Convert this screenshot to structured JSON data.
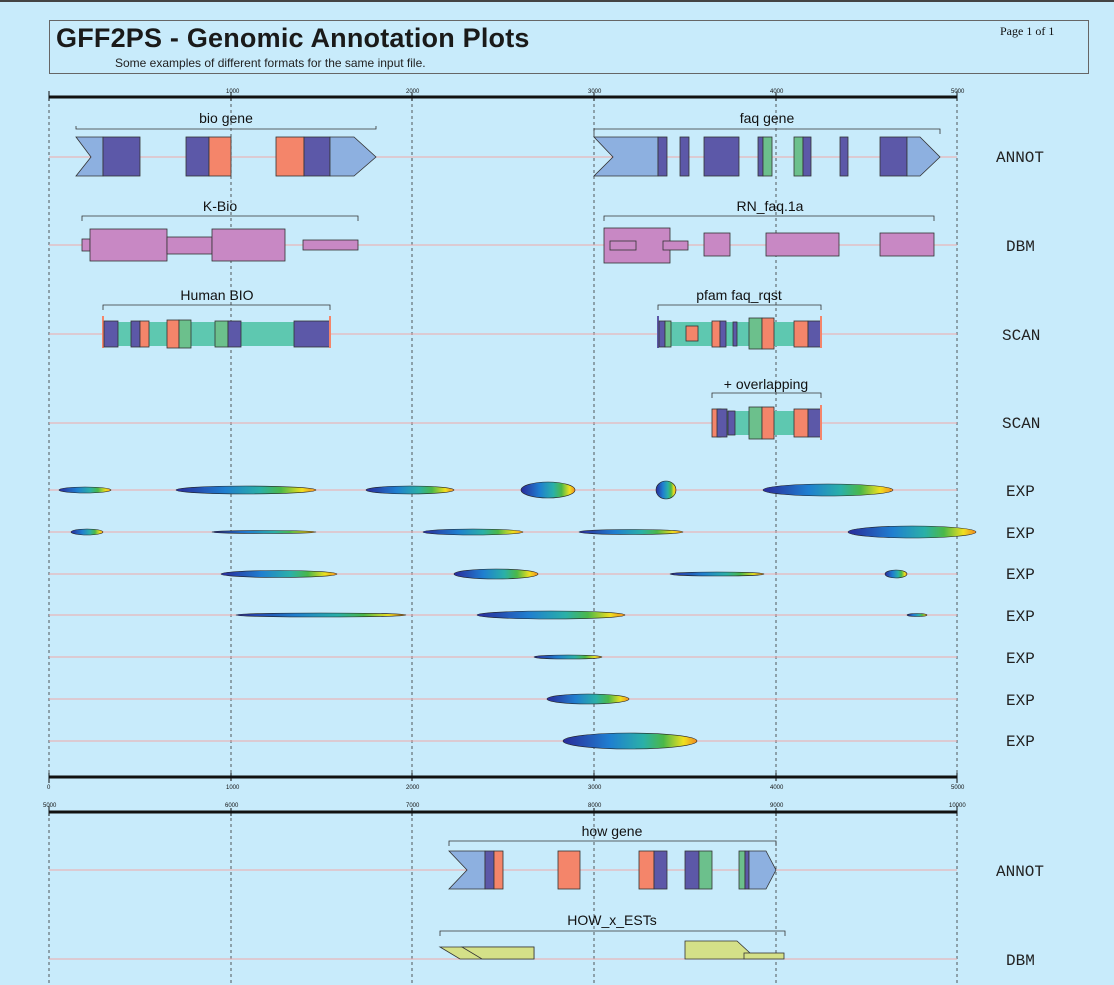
{
  "header": {
    "title": "GFF2PS - Genomic Annotation Plots",
    "subtitle": "Some examples of different formats for the same input file.",
    "page": "Page 1 of 1"
  },
  "colors": {
    "background": "#c8ebfb",
    "grid": "#333333",
    "track_line": "#f0a8a8",
    "light_blue": "#8db0e0",
    "indigo": "#5c58a8",
    "salmon": "#f4856a",
    "green": "#6cc08c",
    "pink": "#c888c4",
    "teal": "#5ec8b0",
    "lime": "#d4e088"
  },
  "panels": [
    {
      "ruler_top_ticks": [
        "1000",
        "2000",
        "3000",
        "4000",
        "5000"
      ],
      "ruler_bottom_ticks": [
        "0",
        "1000",
        "2000",
        "3000",
        "4000",
        "5000"
      ],
      "tracks": [
        {
          "source": "ANNOT",
          "groups": [
            {
              "name": "bio gene"
            },
            {
              "name": "faq gene"
            }
          ]
        },
        {
          "source": "DBM",
          "groups": [
            {
              "name": "K-Bio"
            },
            {
              "name": "RN_faq.1a"
            }
          ]
        },
        {
          "source": "SCAN",
          "groups": [
            {
              "name": "Human BIO"
            },
            {
              "name": "pfam faq_rqst"
            }
          ]
        },
        {
          "source": "SCAN",
          "groups": [
            {
              "name": "+ overlapping"
            }
          ]
        },
        {
          "source": "EXP",
          "groups": []
        },
        {
          "source": "EXP",
          "groups": []
        },
        {
          "source": "EXP",
          "groups": []
        },
        {
          "source": "EXP",
          "groups": []
        },
        {
          "source": "EXP",
          "groups": []
        },
        {
          "source": "EXP",
          "groups": []
        },
        {
          "source": "EXP",
          "groups": []
        }
      ]
    },
    {
      "ruler_top_ticks": [
        "5000",
        "6000",
        "7000",
        "8000",
        "9000",
        "10000"
      ],
      "tracks": [
        {
          "source": "ANNOT",
          "groups": [
            {
              "name": "how gene"
            }
          ]
        },
        {
          "source": "DBM",
          "groups": [
            {
              "name": "HOW_x_ESTs"
            }
          ]
        }
      ]
    }
  ]
}
